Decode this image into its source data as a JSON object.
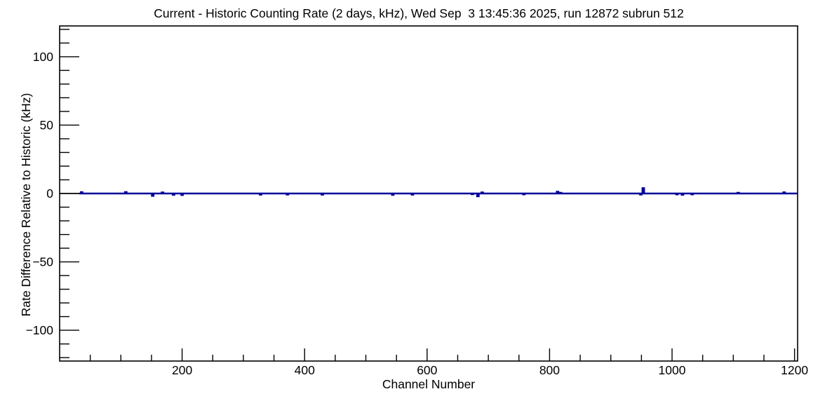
{
  "window": {
    "background": "#ffffff"
  },
  "chart_data": {
    "type": "line",
    "style": "step-histogram",
    "title": "Current - Historic Counting Rate (2 days, kHz), Wed Sep  3 13:45:36 2025, run 12872 subrun 512",
    "xlabel": "Channel Number",
    "ylabel": "Rate Difference Relative to Historic (kHz)",
    "xlim": [
      0,
      1205
    ],
    "ylim": [
      -122.5,
      122.5
    ],
    "grid": false,
    "legend": "none",
    "frame_color": "#000000",
    "line_color": "#000099",
    "zero_line_color": "#000000",
    "x_major_ticks": [
      200,
      400,
      600,
      800,
      1000,
      1200
    ],
    "x_tick_labels": [
      "200",
      "400",
      "600",
      "800",
      "1000",
      "1200"
    ],
    "x_minor_step": 50,
    "y_major_ticks": [
      100,
      50,
      0,
      -50,
      -100
    ],
    "y_tick_labels": [
      "100",
      "50",
      "0",
      "−50",
      "−100"
    ],
    "y_minor_step": 10,
    "baseline_value": 0,
    "series_start_channel": 32,
    "series_end_channel": 1205,
    "spikes": [
      {
        "channel": 36,
        "value": 0.9
      },
      {
        "channel": 108,
        "value": 1.0
      },
      {
        "channel": 152,
        "value": -1.7
      },
      {
        "channel": 168,
        "value": 0.7
      },
      {
        "channel": 186,
        "value": -0.9
      },
      {
        "channel": 200,
        "value": -1.1
      },
      {
        "channel": 328,
        "value": -0.8
      },
      {
        "channel": 372,
        "value": -0.7
      },
      {
        "channel": 429,
        "value": -0.8
      },
      {
        "channel": 544,
        "value": -1.0
      },
      {
        "channel": 576,
        "value": -0.8
      },
      {
        "channel": 674,
        "value": -0.5
      },
      {
        "channel": 683,
        "value": -2.0
      },
      {
        "channel": 690,
        "value": 0.7
      },
      {
        "channel": 758,
        "value": -0.6
      },
      {
        "channel": 813,
        "value": 1.3
      },
      {
        "channel": 818,
        "value": 0.5
      },
      {
        "channel": 949,
        "value": -0.7
      },
      {
        "channel": 953,
        "value": 3.9
      },
      {
        "channel": 1008,
        "value": -0.6
      },
      {
        "channel": 1017,
        "value": -0.9
      },
      {
        "channel": 1033,
        "value": -0.6
      },
      {
        "channel": 1108,
        "value": 0.5
      },
      {
        "channel": 1183,
        "value": 0.8
      }
    ]
  }
}
